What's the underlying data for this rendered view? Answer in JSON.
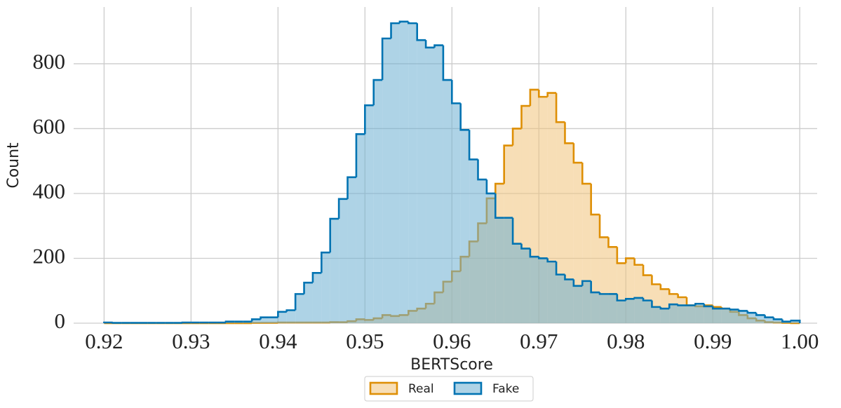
{
  "chart_data": {
    "type": "histogram",
    "xlabel": "BERTScore",
    "ylabel": "Count",
    "bins": [
      0.92,
      0.921,
      0.922,
      0.923,
      0.924,
      0.925,
      0.926,
      0.927,
      0.928,
      0.929,
      0.93,
      0.931,
      0.932,
      0.933,
      0.934,
      0.935,
      0.936,
      0.937,
      0.938,
      0.939,
      0.94,
      0.941,
      0.942,
      0.943,
      0.944,
      0.945,
      0.946,
      0.947,
      0.948,
      0.949,
      0.95,
      0.951,
      0.952,
      0.953,
      0.954,
      0.955,
      0.956,
      0.957,
      0.958,
      0.959,
      0.96,
      0.961,
      0.962,
      0.963,
      0.964,
      0.965,
      0.966,
      0.967,
      0.968,
      0.969,
      0.97,
      0.971,
      0.972,
      0.973,
      0.974,
      0.975,
      0.976,
      0.977,
      0.978,
      0.979,
      0.98,
      0.981,
      0.982,
      0.983,
      0.984,
      0.985,
      0.986,
      0.987,
      0.988,
      0.989,
      0.99,
      0.991,
      0.992,
      0.993,
      0.994,
      0.995,
      0.996,
      0.997,
      0.998,
      0.999,
      1.0
    ],
    "series": [
      {
        "name": "Real",
        "color": "#de8f05",
        "fill": "#f0c27a",
        "values": [
          0,
          0,
          0,
          0,
          0,
          0,
          0,
          0,
          0,
          0,
          0,
          0,
          0,
          0,
          0,
          0,
          0,
          1,
          1,
          1,
          2,
          2,
          2,
          2,
          2,
          2,
          3,
          3,
          6,
          12,
          10,
          15,
          25,
          22,
          25,
          38,
          45,
          60,
          95,
          128,
          160,
          205,
          252,
          308,
          385,
          430,
          548,
          600,
          670,
          720,
          698,
          710,
          620,
          555,
          495,
          430,
          335,
          265,
          235,
          185,
          200,
          180,
          148,
          120,
          105,
          90,
          80,
          55,
          52,
          55,
          50,
          45,
          35,
          25,
          15,
          8,
          3,
          2,
          1,
          0
        ]
      },
      {
        "name": "Fake",
        "color": "#0173b2",
        "fill": "#6bafd2",
        "values": [
          2,
          1,
          1,
          1,
          1,
          1,
          1,
          1,
          1,
          2,
          2,
          2,
          2,
          2,
          5,
          5,
          5,
          12,
          18,
          18,
          35,
          40,
          90,
          125,
          155,
          218,
          322,
          383,
          450,
          583,
          672,
          750,
          878,
          925,
          930,
          925,
          873,
          850,
          857,
          750,
          678,
          596,
          505,
          443,
          400,
          325,
          325,
          245,
          230,
          205,
          200,
          190,
          150,
          135,
          115,
          130,
          95,
          90,
          90,
          70,
          75,
          78,
          70,
          50,
          45,
          58,
          55,
          55,
          60,
          52,
          45,
          45,
          42,
          38,
          32,
          25,
          18,
          12,
          5,
          8
        ]
      }
    ],
    "xlim": [
      0.9165,
      1.002
    ],
    "ylim": [
      0,
      975
    ],
    "xticks": [
      0.92,
      0.93,
      0.94,
      0.95,
      0.96,
      0.97,
      0.98,
      0.99,
      {
        "value": 1.0,
        "label": "1.00"
      }
    ],
    "yticks": [
      0,
      200,
      400,
      600,
      800
    ],
    "grid": true,
    "legend": "lower center"
  }
}
